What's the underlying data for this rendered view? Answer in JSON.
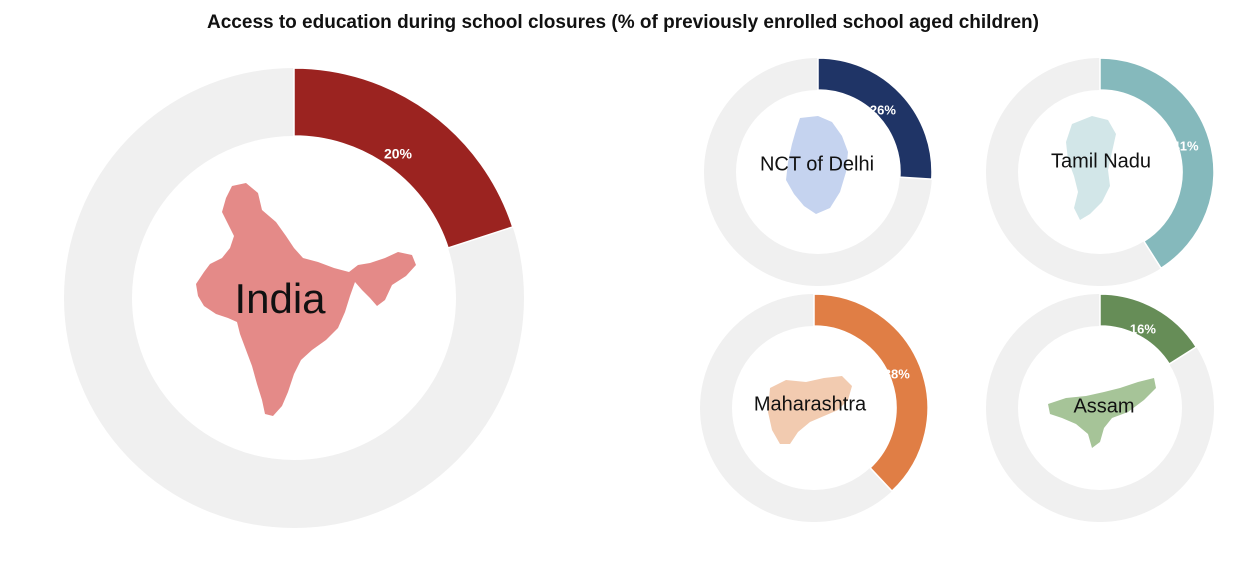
{
  "chart_data": {
    "type": "pie",
    "title": "Access to education during school closures (% of previously enrolled school aged children)",
    "value_suffix": "%",
    "track_color": "#f0f0f0",
    "charts": [
      {
        "region": "India",
        "value": 20,
        "color": "#9b2320",
        "map_color": "#e48a88"
      },
      {
        "region": "NCT of Delhi",
        "value": 26,
        "color": "#1f3466",
        "map_color": "#c5d3ef"
      },
      {
        "region": "Tamil Nadu",
        "value": 41,
        "color": "#85b9bc",
        "map_color": "#d2e6e8"
      },
      {
        "region": "Maharashtra",
        "value": 38,
        "color": "#e07e45",
        "map_color": "#f2cbb0"
      },
      {
        "region": "Assam",
        "value": 16,
        "color": "#668d57",
        "map_color": "#a6c498"
      }
    ]
  }
}
